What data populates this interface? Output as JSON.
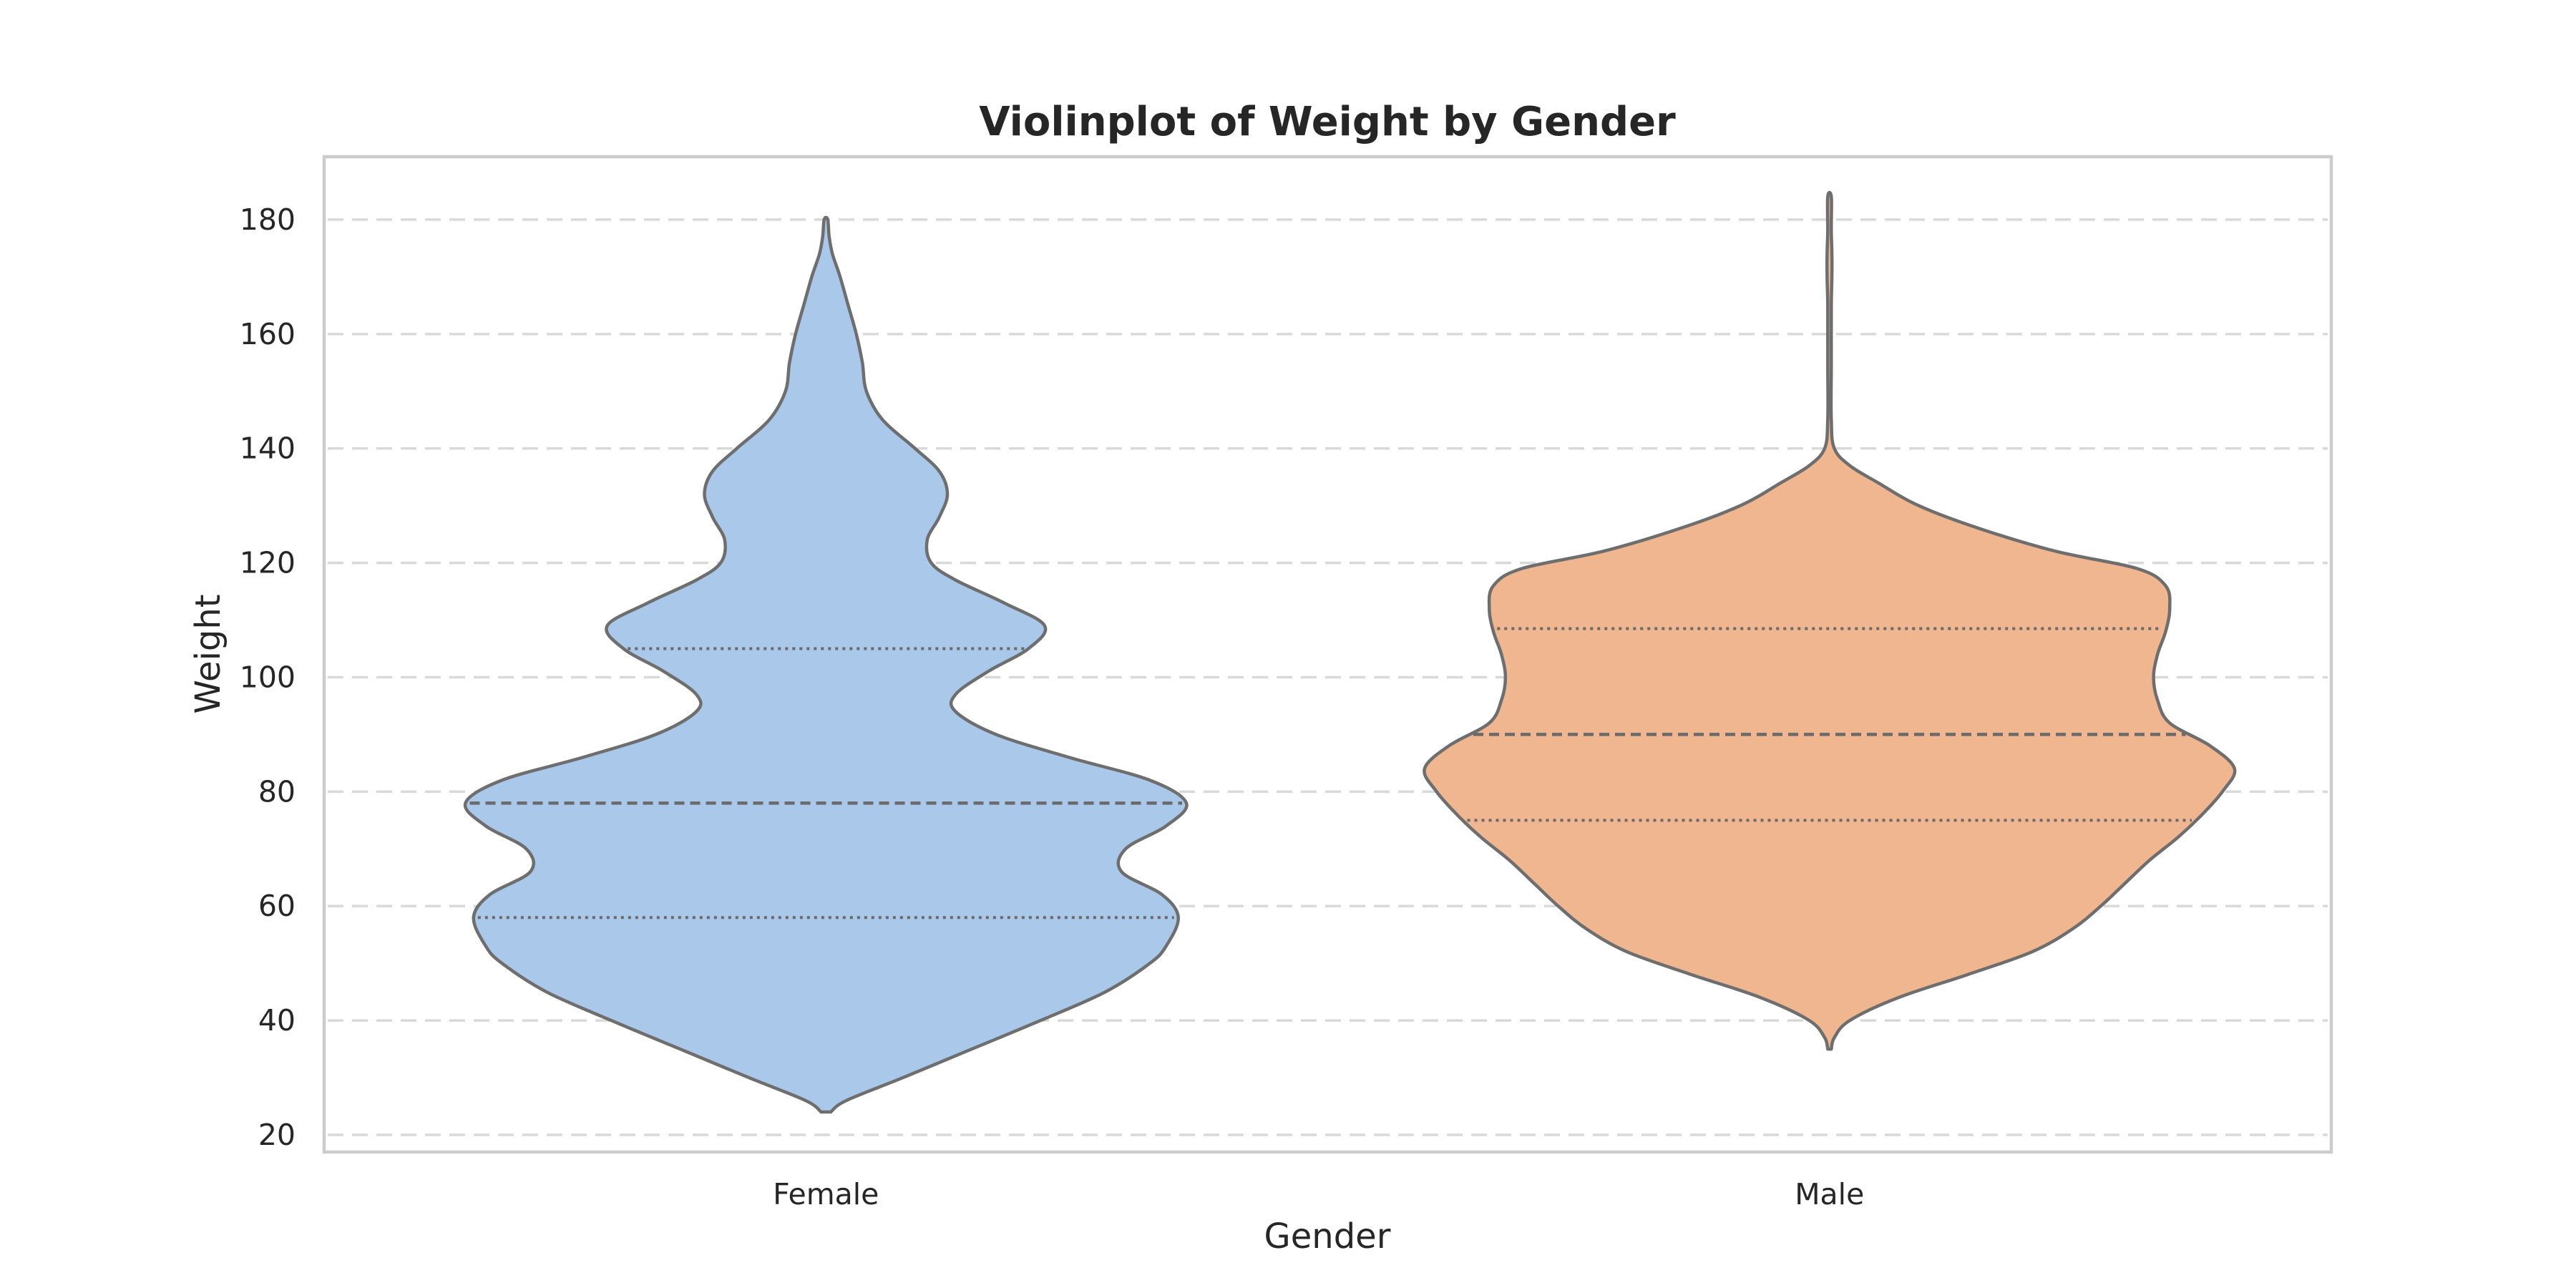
{
  "chart_data": {
    "type": "violin",
    "title": "Violinplot of Weight by Gender",
    "xlabel": "Gender",
    "ylabel": "Weight",
    "ylim": [
      17,
      191
    ],
    "yticks": [
      20,
      40,
      60,
      80,
      100,
      120,
      140,
      160,
      180
    ],
    "grid": "horizontal dashed",
    "categories": [
      "Female",
      "Male"
    ],
    "violins": [
      {
        "category": "Female",
        "color": "#a9c8ea",
        "q1": 58,
        "median": 78,
        "q3": 105,
        "profile": [
          [
            24,
            0.012
          ],
          [
            26,
            0.05
          ],
          [
            30,
            0.19
          ],
          [
            35,
            0.36
          ],
          [
            40,
            0.53
          ],
          [
            45,
            0.69
          ],
          [
            50,
            0.8
          ],
          [
            53,
            0.84
          ],
          [
            58,
            0.87
          ],
          [
            62,
            0.83
          ],
          [
            66,
            0.73
          ],
          [
            70,
            0.74
          ],
          [
            74,
            0.84
          ],
          [
            78,
            0.89
          ],
          [
            82,
            0.8
          ],
          [
            86,
            0.6
          ],
          [
            90,
            0.42
          ],
          [
            94,
            0.32
          ],
          [
            97,
            0.32
          ],
          [
            101,
            0.4
          ],
          [
            105,
            0.5
          ],
          [
            109,
            0.54
          ],
          [
            113,
            0.44
          ],
          [
            117,
            0.32
          ],
          [
            120,
            0.26
          ],
          [
            124,
            0.25
          ],
          [
            128,
            0.28
          ],
          [
            132,
            0.3
          ],
          [
            136,
            0.28
          ],
          [
            140,
            0.22
          ],
          [
            145,
            0.14
          ],
          [
            150,
            0.1
          ],
          [
            155,
            0.09
          ],
          [
            160,
            0.075
          ],
          [
            165,
            0.055
          ],
          [
            170,
            0.035
          ],
          [
            174,
            0.016
          ],
          [
            177,
            0.008
          ],
          [
            180,
            0.003
          ]
        ]
      },
      {
        "category": "Male",
        "color": "#f0b68f",
        "q1": 75,
        "median": 90,
        "q3": 108.5,
        "profile": [
          [
            35,
            0.003
          ],
          [
            37,
            0.012
          ],
          [
            40,
            0.05
          ],
          [
            44,
            0.17
          ],
          [
            48,
            0.34
          ],
          [
            52,
            0.5
          ],
          [
            56,
            0.6
          ],
          [
            60,
            0.67
          ],
          [
            64,
            0.73
          ],
          [
            68,
            0.79
          ],
          [
            72,
            0.86
          ],
          [
            76,
            0.92
          ],
          [
            80,
            0.97
          ],
          [
            84,
            1.0
          ],
          [
            88,
            0.94
          ],
          [
            92,
            0.84
          ],
          [
            96,
            0.81
          ],
          [
            100,
            0.8
          ],
          [
            104,
            0.81
          ],
          [
            108,
            0.83
          ],
          [
            112,
            0.84
          ],
          [
            116,
            0.83
          ],
          [
            119,
            0.76
          ],
          [
            122,
            0.56
          ],
          [
            126,
            0.37
          ],
          [
            130,
            0.22
          ],
          [
            134,
            0.12
          ],
          [
            137,
            0.05
          ],
          [
            140,
            0.012
          ],
          [
            145,
            0.004
          ],
          [
            155,
            0.003
          ],
          [
            165,
            0.003
          ],
          [
            170,
            0.006
          ],
          [
            174,
            0.006
          ],
          [
            178,
            0.003
          ],
          [
            184,
            0.002
          ]
        ]
      }
    ]
  }
}
